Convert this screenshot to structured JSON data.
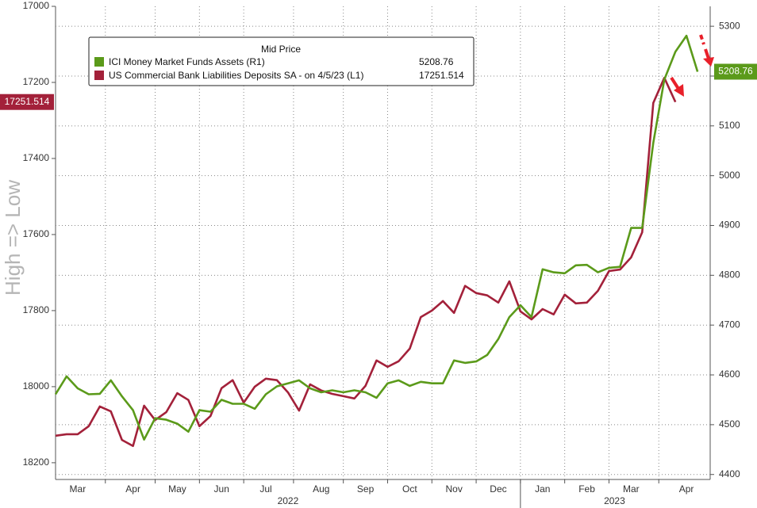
{
  "chart_data": {
    "type": "line",
    "y_axis_label": "High => Low",
    "legend_title": "Mid Price",
    "categories": [
      null,
      null,
      "Mar",
      null,
      null,
      null,
      null,
      "Apr",
      null,
      null,
      null,
      "May",
      null,
      null,
      null,
      "Jun",
      null,
      null,
      null,
      "Jul",
      null,
      null,
      null,
      null,
      "Aug",
      null,
      null,
      null,
      "Sep",
      null,
      null,
      null,
      "Oct",
      null,
      null,
      null,
      "Nov",
      null,
      null,
      null,
      "Dec",
      null,
      null,
      null,
      "Jan",
      null,
      null,
      null,
      "Feb",
      null,
      null,
      null,
      "Mar",
      null,
      null,
      null,
      null,
      "Apr",
      null,
      null
    ],
    "years": [
      "2022",
      "2023"
    ],
    "ylim": [
      18244,
      17000
    ],
    "yticks": [
      17000,
      17200,
      17400,
      17600,
      17800,
      18000,
      18200
    ],
    "y2lim": [
      4390,
      5340
    ],
    "y2ticks": [
      4400,
      4500,
      4600,
      4700,
      4800,
      4900,
      5000,
      5100,
      5200,
      5300
    ],
    "grid": true,
    "series": [
      {
        "name": "ICI Money Market Funds Assets  (R1)",
        "color": "#5b9a1a",
        "axis": "y2",
        "values": [
          4561,
          4597,
          4573,
          4561,
          4562,
          4589,
          4557,
          4529,
          4470,
          4513,
          4510,
          4502,
          4486,
          4529,
          4526,
          4550,
          4542,
          4542,
          4532,
          4561,
          4577,
          4583,
          4589,
          4573,
          4565,
          4569,
          4565,
          4569,
          4565,
          4554,
          4583,
          4589,
          4578,
          4586,
          4583,
          4583,
          4629,
          4624,
          4627,
          4640,
          4672,
          4716,
          4740,
          4716,
          4812,
          4806,
          4804,
          4820,
          4821,
          4806,
          4815,
          4817,
          4895,
          4895,
          5066,
          5193,
          5249,
          5281,
          5208.76,
          null
        ]
      },
      {
        "name": "US Commercial Bank Liabilities Deposits SA -  on 4/5/23  (L1)",
        "color": "#a3213a",
        "axis": "y",
        "values": [
          18129,
          18125,
          18125,
          18104,
          18052,
          18065,
          18140,
          18156,
          18050,
          18088,
          18067,
          18017,
          18035,
          18104,
          18077,
          18004,
          17983,
          18042,
          18000,
          17979,
          17983,
          18015,
          18063,
          17994,
          18010,
          18019,
          18025,
          18031,
          17998,
          17931,
          17948,
          17933,
          17900,
          17817,
          17800,
          17775,
          17806,
          17735,
          17754,
          17760,
          17779,
          17723,
          17802,
          17823,
          17796,
          17810,
          17758,
          17781,
          17779,
          17748,
          17696,
          17692,
          17660,
          17594,
          17254,
          17188,
          17251.514,
          null,
          null,
          null
        ]
      }
    ]
  }
}
